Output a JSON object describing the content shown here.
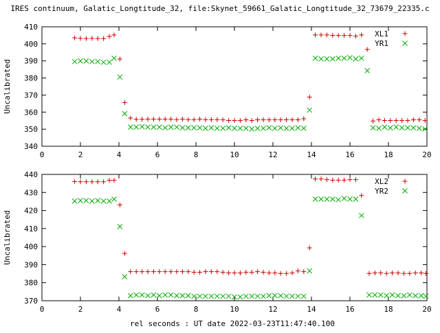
{
  "chart_data": [
    {
      "type": "scatter",
      "title": "IRES continuum, Galatic_Longtitude_32, file:Skynet_59661_Galatic_Longtitude_32_73679_22335.c",
      "xlabel": "",
      "ylabel": "Uncalibrated",
      "xlim": [
        0,
        20
      ],
      "ylim": [
        340,
        410
      ],
      "xticks": [
        "0",
        "2",
        "4",
        "6",
        "8",
        "10",
        "12",
        "14",
        "16",
        "18",
        "20"
      ],
      "yticks": [
        "340",
        "350",
        "360",
        "370",
        "380",
        "390",
        "400",
        "410"
      ],
      "legend_position": "top-right",
      "series": [
        {
          "name": "XL1",
          "marker": "plus",
          "color": "#cc0000",
          "points": [
            [
              1.7,
              403.5
            ],
            [
              2.0,
              403.2
            ],
            [
              2.3,
              403.1
            ],
            [
              2.6,
              403.2
            ],
            [
              2.9,
              403.1
            ],
            [
              3.2,
              403.1
            ],
            [
              3.5,
              404.3
            ],
            [
              3.75,
              405.2
            ],
            [
              4.05,
              391.1
            ],
            [
              4.3,
              365.6
            ],
            [
              4.6,
              356.5
            ],
            [
              4.9,
              355.8
            ],
            [
              5.2,
              355.8
            ],
            [
              5.5,
              355.9
            ],
            [
              5.8,
              355.9
            ],
            [
              6.1,
              355.9
            ],
            [
              6.4,
              355.9
            ],
            [
              6.7,
              355.9
            ],
            [
              7.0,
              355.6
            ],
            [
              7.3,
              355.9
            ],
            [
              7.6,
              355.6
            ],
            [
              7.9,
              355.6
            ],
            [
              8.2,
              355.9
            ],
            [
              8.5,
              355.6
            ],
            [
              8.8,
              355.6
            ],
            [
              9.1,
              355.6
            ],
            [
              9.4,
              355.5
            ],
            [
              9.7,
              355.1
            ],
            [
              10.0,
              355.1
            ],
            [
              10.3,
              355.1
            ],
            [
              10.6,
              355.5
            ],
            [
              10.9,
              355.1
            ],
            [
              11.2,
              355.5
            ],
            [
              11.5,
              355.5
            ],
            [
              11.8,
              355.5
            ],
            [
              12.1,
              355.5
            ],
            [
              12.4,
              355.5
            ],
            [
              12.7,
              355.5
            ],
            [
              13.0,
              355.5
            ],
            [
              13.3,
              355.5
            ],
            [
              13.6,
              356.1
            ],
            [
              13.9,
              368.8
            ],
            [
              14.2,
              405.2
            ],
            [
              14.5,
              405.2
            ],
            [
              14.8,
              405.2
            ],
            [
              15.1,
              404.9
            ],
            [
              15.4,
              404.9
            ],
            [
              15.7,
              404.9
            ],
            [
              16.0,
              404.9
            ],
            [
              16.3,
              404.5
            ],
            [
              16.6,
              405.2
            ],
            [
              16.9,
              396.7
            ],
            [
              17.2,
              354.8
            ],
            [
              17.5,
              355.5
            ],
            [
              17.8,
              355.1
            ],
            [
              18.1,
              355.1
            ],
            [
              18.4,
              355.1
            ],
            [
              18.7,
              355.1
            ],
            [
              19.0,
              355.1
            ],
            [
              19.3,
              355.5
            ],
            [
              19.6,
              355.5
            ],
            [
              19.9,
              355.1
            ]
          ]
        },
        {
          "name": "YR1",
          "marker": "cross",
          "color": "#00aa00",
          "points": [
            [
              1.7,
              389.6
            ],
            [
              2.0,
              390.0
            ],
            [
              2.3,
              390.0
            ],
            [
              2.6,
              389.6
            ],
            [
              2.9,
              389.6
            ],
            [
              3.2,
              389.2
            ],
            [
              3.5,
              389.2
            ],
            [
              3.75,
              391.6
            ],
            [
              4.05,
              380.5
            ],
            [
              4.3,
              359.1
            ],
            [
              4.6,
              351.2
            ],
            [
              4.9,
              351.2
            ],
            [
              5.2,
              351.5
            ],
            [
              5.5,
              351.2
            ],
            [
              5.8,
              351.2
            ],
            [
              6.1,
              351.2
            ],
            [
              6.4,
              350.8
            ],
            [
              6.7,
              351.2
            ],
            [
              7.0,
              351.2
            ],
            [
              7.3,
              350.8
            ],
            [
              7.6,
              350.8
            ],
            [
              7.9,
              350.8
            ],
            [
              8.2,
              350.8
            ],
            [
              8.5,
              350.5
            ],
            [
              8.8,
              350.8
            ],
            [
              9.1,
              350.5
            ],
            [
              9.4,
              350.5
            ],
            [
              9.7,
              350.8
            ],
            [
              10.0,
              350.5
            ],
            [
              10.3,
              350.5
            ],
            [
              10.6,
              350.5
            ],
            [
              10.9,
              350.1
            ],
            [
              11.2,
              350.5
            ],
            [
              11.5,
              350.5
            ],
            [
              11.8,
              350.8
            ],
            [
              12.1,
              350.5
            ],
            [
              12.4,
              350.8
            ],
            [
              12.7,
              350.5
            ],
            [
              13.0,
              350.5
            ],
            [
              13.3,
              350.8
            ],
            [
              13.6,
              350.5
            ],
            [
              13.9,
              361.2
            ],
            [
              14.2,
              391.6
            ],
            [
              14.5,
              391.2
            ],
            [
              14.8,
              391.2
            ],
            [
              15.1,
              391.2
            ],
            [
              15.4,
              391.6
            ],
            [
              15.7,
              391.6
            ],
            [
              16.0,
              391.9
            ],
            [
              16.3,
              391.2
            ],
            [
              16.6,
              391.6
            ],
            [
              16.9,
              384.3
            ],
            [
              17.2,
              350.8
            ],
            [
              17.5,
              350.5
            ],
            [
              17.8,
              351.2
            ],
            [
              18.1,
              350.8
            ],
            [
              18.4,
              351.2
            ],
            [
              18.7,
              350.8
            ],
            [
              19.0,
              350.8
            ],
            [
              19.3,
              350.8
            ],
            [
              19.6,
              350.5
            ],
            [
              19.9,
              350.1
            ]
          ]
        }
      ]
    },
    {
      "type": "scatter",
      "title": "",
      "xlabel": "rel seconds : UT date 2022-03-23T11:47:40.100",
      "ylabel": "Uncalibrated",
      "xlim": [
        0,
        20
      ],
      "ylim": [
        370,
        440
      ],
      "xticks": [
        "0",
        "2",
        "4",
        "6",
        "8",
        "10",
        "12",
        "14",
        "16",
        "18",
        "20"
      ],
      "yticks": [
        "370",
        "380",
        "390",
        "400",
        "410",
        "420",
        "430",
        "440"
      ],
      "legend_position": "top-right",
      "series": [
        {
          "name": "XL2",
          "marker": "plus",
          "color": "#cc0000",
          "points": [
            [
              1.7,
              436.0
            ],
            [
              2.0,
              435.9
            ],
            [
              2.3,
              435.9
            ],
            [
              2.6,
              435.9
            ],
            [
              2.9,
              435.9
            ],
            [
              3.2,
              435.9
            ],
            [
              3.5,
              436.7
            ],
            [
              3.75,
              436.7
            ],
            [
              4.05,
              423.1
            ],
            [
              4.3,
              396.2
            ],
            [
              4.6,
              386.1
            ],
            [
              4.9,
              386.1
            ],
            [
              5.2,
              386.1
            ],
            [
              5.5,
              386.1
            ],
            [
              5.8,
              386.1
            ],
            [
              6.1,
              386.1
            ],
            [
              6.4,
              386.1
            ],
            [
              6.7,
              386.1
            ],
            [
              7.0,
              386.1
            ],
            [
              7.3,
              386.1
            ],
            [
              7.6,
              386.1
            ],
            [
              7.9,
              385.8
            ],
            [
              8.2,
              385.8
            ],
            [
              8.5,
              386.1
            ],
            [
              8.8,
              386.1
            ],
            [
              9.1,
              386.1
            ],
            [
              9.4,
              385.8
            ],
            [
              9.7,
              385.4
            ],
            [
              10.0,
              385.4
            ],
            [
              10.3,
              385.4
            ],
            [
              10.6,
              385.8
            ],
            [
              10.9,
              385.8
            ],
            [
              11.2,
              386.1
            ],
            [
              11.5,
              385.8
            ],
            [
              11.8,
              385.4
            ],
            [
              12.1,
              385.4
            ],
            [
              12.4,
              385.1
            ],
            [
              12.7,
              385.1
            ],
            [
              13.0,
              385.4
            ],
            [
              13.3,
              386.5
            ],
            [
              13.6,
              386.1
            ],
            [
              13.9,
              399.3
            ],
            [
              14.2,
              437.5
            ],
            [
              14.5,
              437.5
            ],
            [
              14.8,
              437.1
            ],
            [
              15.1,
              436.8
            ],
            [
              15.4,
              436.8
            ],
            [
              15.7,
              436.8
            ],
            [
              16.0,
              437.1
            ],
            [
              16.3,
              437.1
            ],
            [
              16.6,
              428.3
            ],
            [
              17.0,
              385.1
            ],
            [
              17.3,
              385.4
            ],
            [
              17.6,
              385.4
            ],
            [
              17.9,
              385.1
            ],
            [
              18.2,
              385.4
            ],
            [
              18.5,
              385.4
            ],
            [
              18.8,
              385.1
            ],
            [
              19.1,
              385.1
            ],
            [
              19.4,
              385.4
            ],
            [
              19.7,
              385.4
            ],
            [
              19.95,
              385.1
            ]
          ]
        },
        {
          "name": "YR2",
          "marker": "cross",
          "color": "#00aa00",
          "points": [
            [
              1.7,
              425.2
            ],
            [
              2.0,
              425.5
            ],
            [
              2.3,
              425.5
            ],
            [
              2.6,
              425.2
            ],
            [
              2.9,
              425.5
            ],
            [
              3.2,
              425.2
            ],
            [
              3.5,
              425.2
            ],
            [
              3.75,
              426.3
            ],
            [
              4.05,
              411.1
            ],
            [
              4.3,
              383.3
            ],
            [
              4.6,
              372.8
            ],
            [
              4.9,
              373.2
            ],
            [
              5.2,
              373.2
            ],
            [
              5.5,
              372.8
            ],
            [
              5.8,
              373.2
            ],
            [
              6.1,
              372.8
            ],
            [
              6.4,
              373.2
            ],
            [
              6.7,
              373.2
            ],
            [
              7.0,
              372.8
            ],
            [
              7.3,
              372.8
            ],
            [
              7.6,
              372.8
            ],
            [
              7.9,
              372.5
            ],
            [
              8.2,
              372.5
            ],
            [
              8.5,
              372.5
            ],
            [
              8.8,
              372.5
            ],
            [
              9.1,
              372.5
            ],
            [
              9.4,
              372.5
            ],
            [
              9.7,
              372.5
            ],
            [
              10.0,
              372.1
            ],
            [
              10.3,
              372.1
            ],
            [
              10.6,
              372.5
            ],
            [
              10.9,
              372.5
            ],
            [
              11.2,
              372.5
            ],
            [
              11.5,
              372.5
            ],
            [
              11.8,
              372.8
            ],
            [
              12.1,
              372.8
            ],
            [
              12.4,
              372.8
            ],
            [
              12.7,
              372.5
            ],
            [
              13.0,
              372.5
            ],
            [
              13.3,
              372.5
            ],
            [
              13.6,
              372.5
            ],
            [
              13.9,
              386.5
            ],
            [
              14.2,
              426.3
            ],
            [
              14.5,
              426.3
            ],
            [
              14.8,
              426.3
            ],
            [
              15.1,
              426.3
            ],
            [
              15.4,
              426.0
            ],
            [
              15.7,
              426.7
            ],
            [
              16.0,
              426.3
            ],
            [
              16.3,
              426.3
            ],
            [
              16.6,
              417.2
            ],
            [
              17.0,
              373.2
            ],
            [
              17.3,
              373.2
            ],
            [
              17.6,
              373.2
            ],
            [
              17.9,
              372.8
            ],
            [
              18.2,
              373.2
            ],
            [
              18.5,
              372.8
            ],
            [
              18.8,
              372.8
            ],
            [
              19.1,
              373.2
            ],
            [
              19.4,
              372.8
            ],
            [
              19.7,
              372.8
            ],
            [
              19.95,
              372.5
            ]
          ]
        }
      ]
    }
  ]
}
